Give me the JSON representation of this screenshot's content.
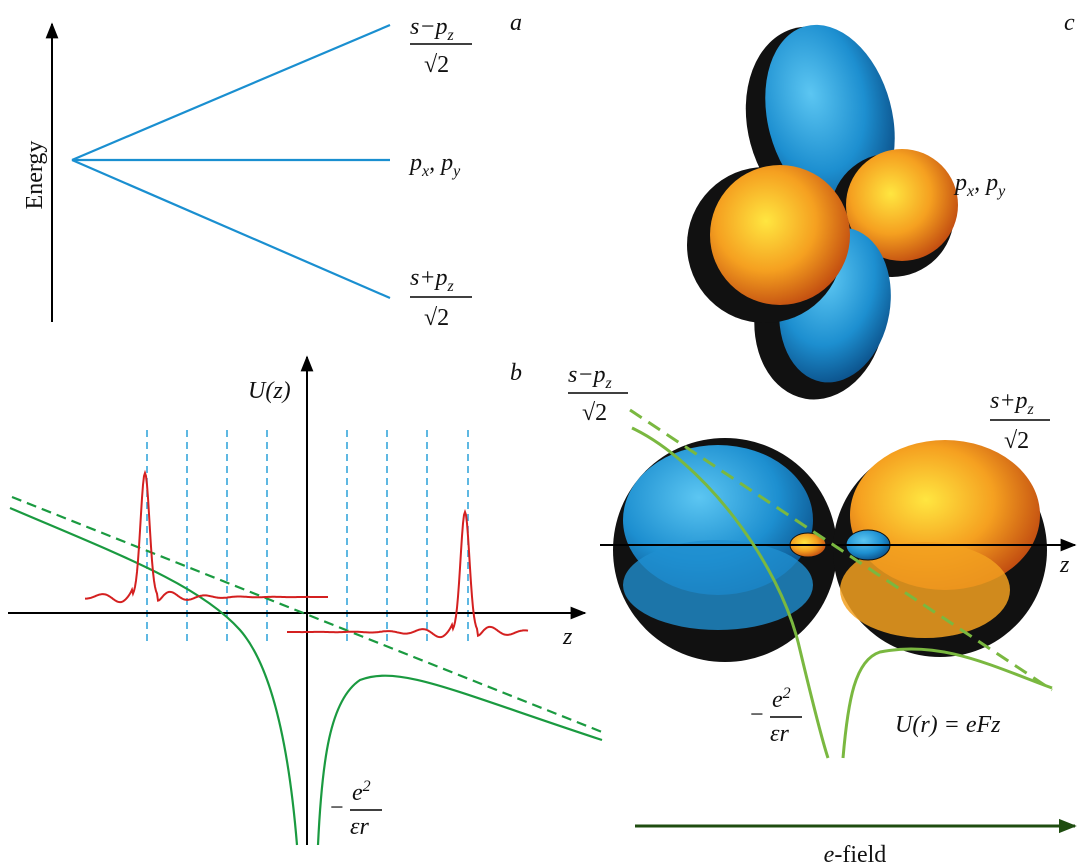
{
  "panel_a": {
    "label": "a",
    "axis_label": "Energy",
    "upper_level": {
      "numerator": "s−p",
      "subscript": "z",
      "denominator": "√2"
    },
    "middle_level": {
      "p1": "p",
      "sub1": "x",
      "sep": ", ",
      "p2": "p",
      "sub2": "y"
    },
    "lower_level": {
      "numerator": "s+p",
      "subscript": "z",
      "denominator": "√2"
    }
  },
  "panel_b": {
    "label": "b",
    "y_axis_label": "U(z)",
    "x_axis_label": "z",
    "potential_label": {
      "sign": "−",
      "numerator": "e",
      "superscript": "2",
      "denominator": "εr"
    }
  },
  "panel_c": {
    "label": "c",
    "top_label": {
      "p1": "p",
      "sub1": "x",
      "sep": ", ",
      "p2": "p",
      "sub2": "y"
    },
    "left_lobe_label": {
      "numerator": "s−p",
      "subscript": "z",
      "denominator": "√2"
    },
    "right_lobe_label": {
      "numerator": "s+p",
      "subscript": "z",
      "denominator": "√2"
    },
    "axis_label": "z",
    "potential_label": {
      "sign": "−",
      "numerator": "e",
      "superscript": "2",
      "denominator": "εr"
    },
    "field_potential": "U(r) = eFz",
    "field_label": {
      "italic": "e",
      "rest": "-field"
    }
  }
}
